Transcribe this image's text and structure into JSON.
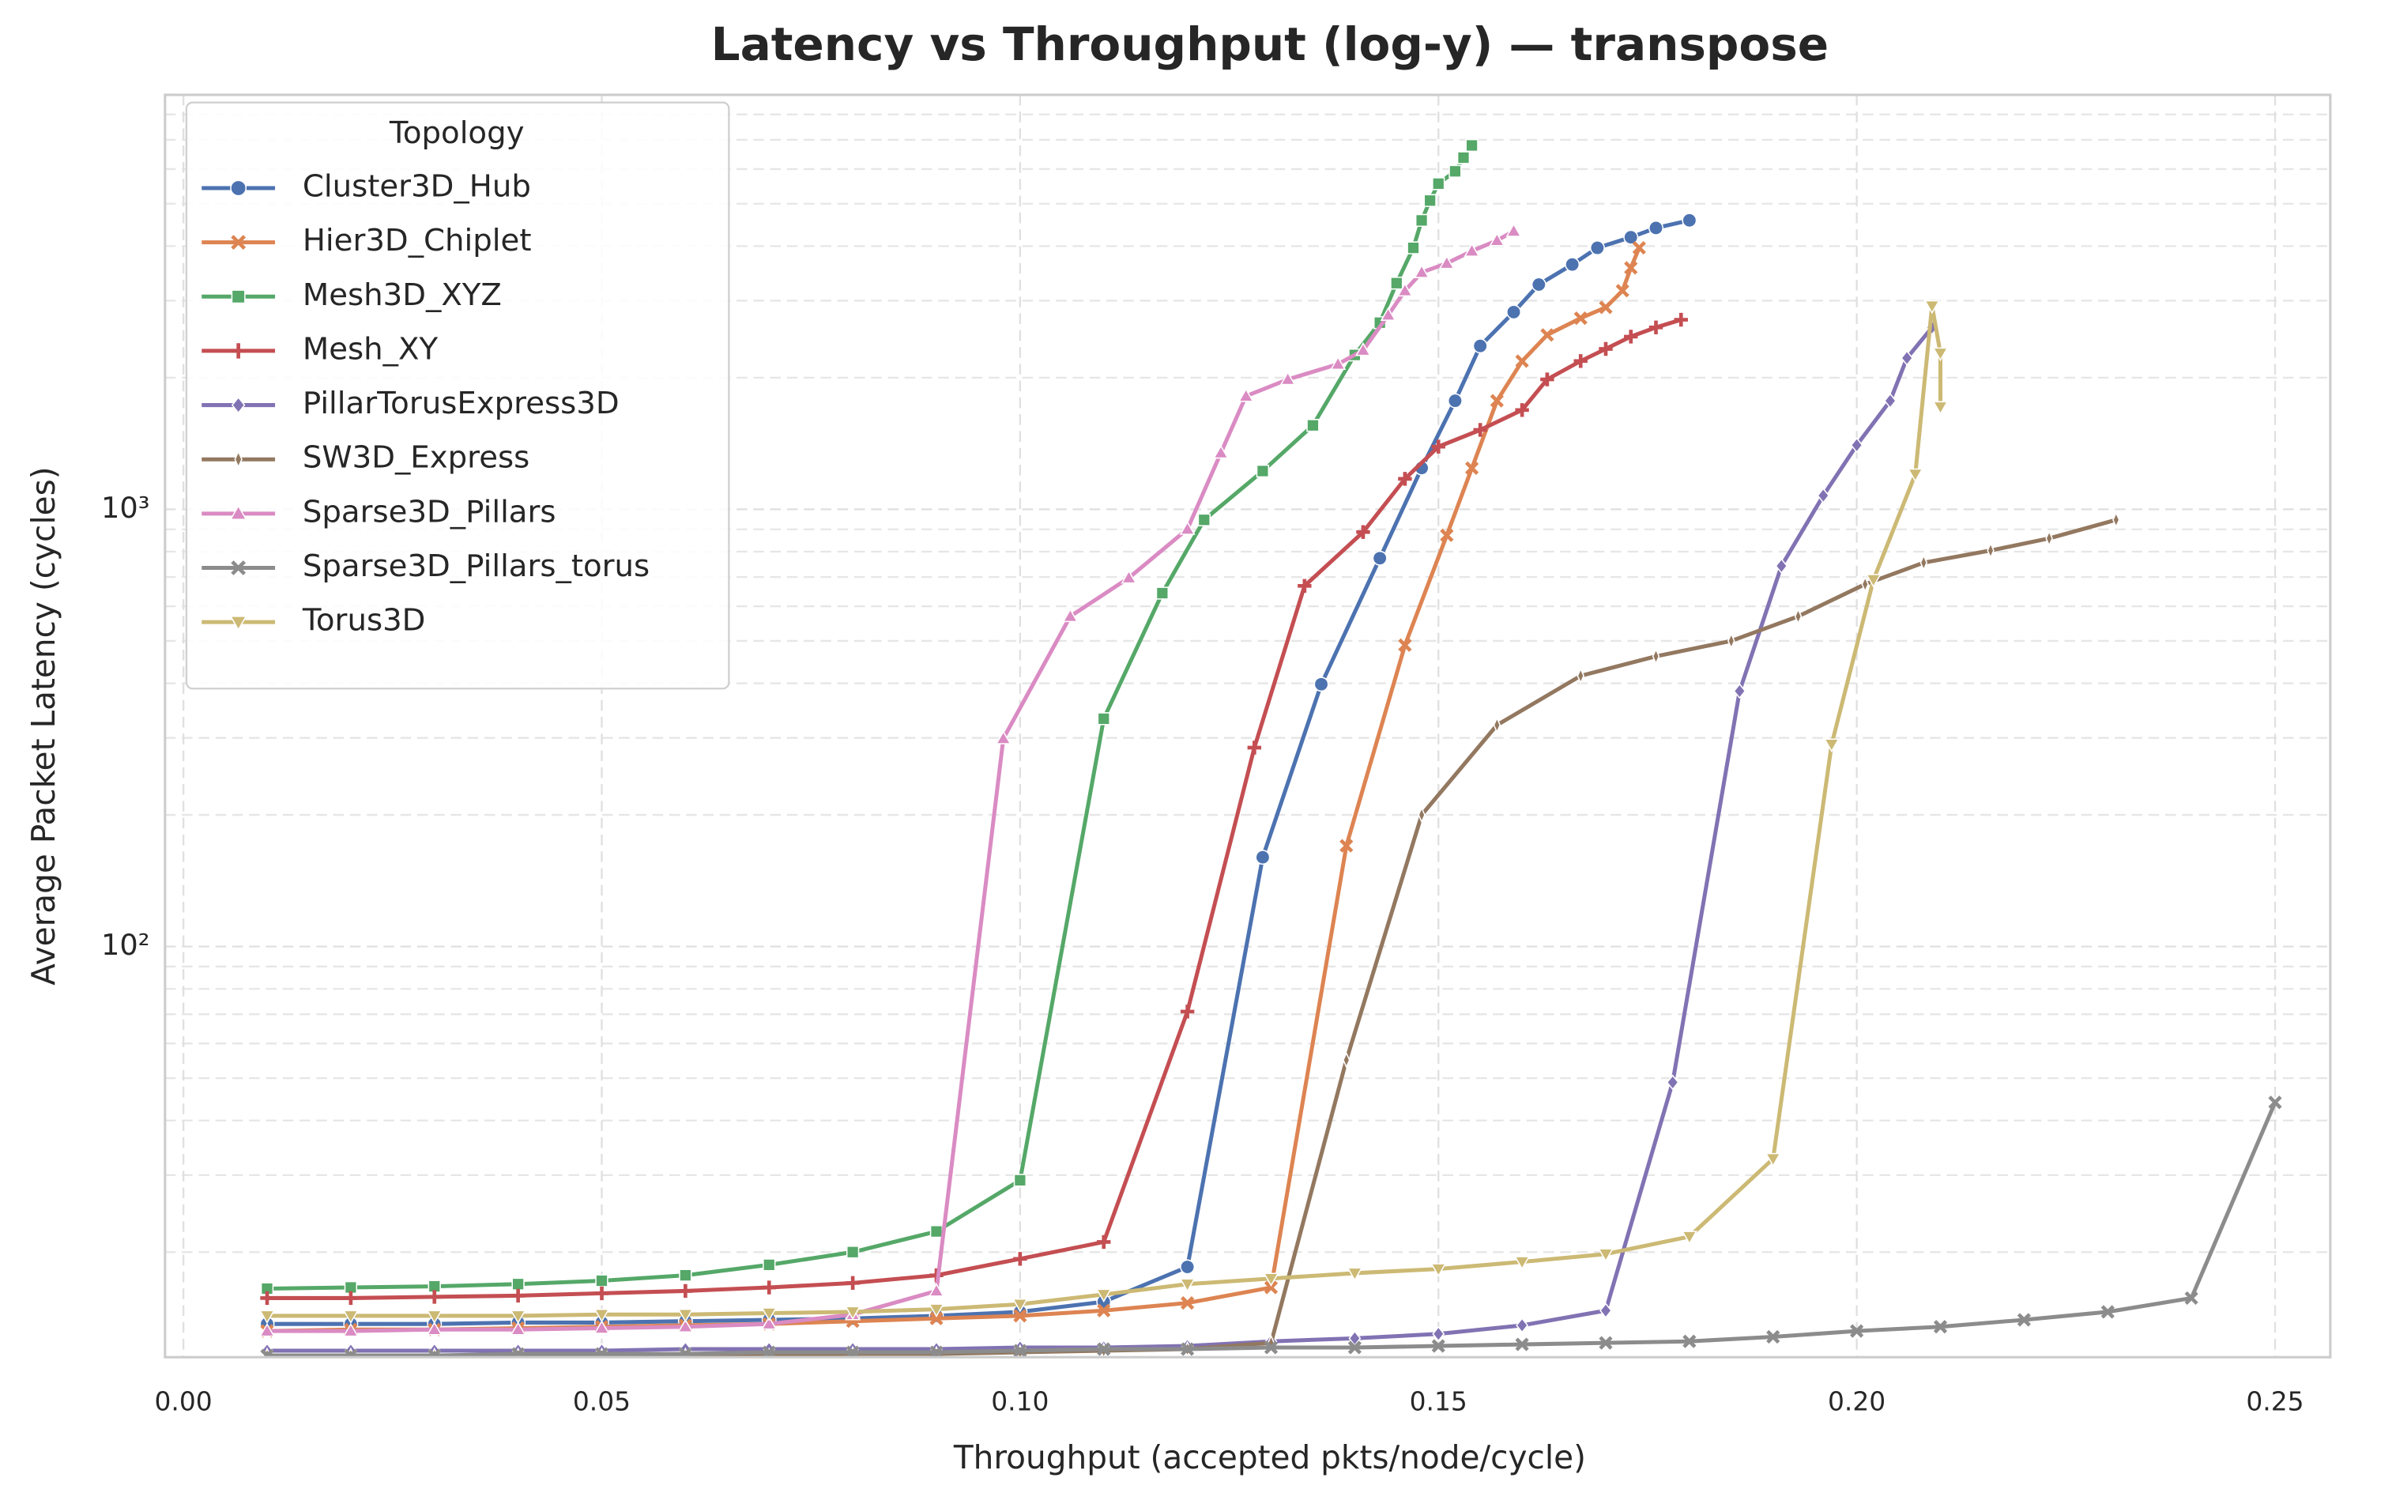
{
  "chart_data": {
    "type": "line",
    "title": "Latency vs Throughput (log-y) — transpose",
    "xlabel": "Throughput (accepted pkts/node/cycle)",
    "ylabel": "Average Packet Latency (cycles)",
    "xlim": [
      -0.0022,
      0.2566
    ],
    "ylim": [
      11.5,
      8870
    ],
    "xticks": [
      {
        "value": 0,
        "label": "0.00"
      },
      {
        "value": 0.05,
        "label": "0.05"
      },
      {
        "value": 0.1,
        "label": "0.10"
      },
      {
        "value": 0.15,
        "label": "0.15"
      },
      {
        "value": 0.2,
        "label": "0.20"
      },
      {
        "value": 0.25,
        "label": "0.25"
      }
    ],
    "yticks": [
      {
        "value": 100,
        "label": "10²"
      },
      {
        "value": 1000,
        "label": "10³"
      }
    ],
    "yminorticks": [
      20,
      30,
      40,
      50,
      60,
      70,
      80,
      90,
      200,
      300,
      400,
      500,
      600,
      700,
      800,
      900,
      2000,
      3000,
      4000,
      5000,
      6000,
      7000,
      8000
    ],
    "ylog": true,
    "grid": true,
    "legend": "upper left",
    "legend_title": "Topology",
    "series": [
      {
        "name": "Cluster3D_Hub",
        "color": "#4c72b0",
        "marker": "circle",
        "x": [
          0.01,
          0.02,
          0.03,
          0.04,
          0.05,
          0.06,
          0.07,
          0.08,
          0.09,
          0.1,
          0.11,
          0.12,
          0.129,
          0.136,
          0.143,
          0.148,
          0.152,
          0.155,
          0.159,
          0.162,
          0.166,
          0.169,
          0.173,
          0.176,
          0.18
        ],
        "values": [
          13.7,
          13.7,
          13.7,
          13.8,
          13.8,
          13.9,
          14.0,
          14.1,
          14.3,
          14.6,
          15.4,
          18.5,
          160,
          398,
          773,
          1243,
          1771,
          2364,
          2825,
          3266,
          3630,
          3963,
          4190,
          4400,
          4580
        ]
      },
      {
        "name": "Hier3D_Chiplet",
        "color": "#dd8452",
        "marker": "x",
        "x": [
          0.01,
          0.02,
          0.03,
          0.04,
          0.05,
          0.06,
          0.07,
          0.08,
          0.09,
          0.1,
          0.11,
          0.12,
          0.13,
          0.139,
          0.146,
          0.151,
          0.154,
          0.157,
          0.16,
          0.163,
          0.167,
          0.17,
          0.172,
          0.173,
          0.174
        ],
        "values": [
          13.2,
          13.3,
          13.3,
          13.4,
          13.5,
          13.6,
          13.7,
          13.9,
          14.1,
          14.3,
          14.7,
          15.3,
          16.6,
          170,
          489,
          872,
          1242,
          1771,
          2182,
          2505,
          2736,
          2896,
          3162,
          3566,
          3963
        ]
      },
      {
        "name": "Mesh3D_XYZ",
        "color": "#55a868",
        "marker": "square",
        "x": [
          0.01,
          0.02,
          0.03,
          0.04,
          0.05,
          0.06,
          0.07,
          0.08,
          0.09,
          0.1,
          0.11,
          0.117,
          0.122,
          0.129,
          0.135,
          0.14,
          0.143,
          0.145,
          0.147,
          0.148,
          0.149,
          0.15,
          0.152,
          0.153,
          0.154
        ],
        "values": [
          16.5,
          16.6,
          16.7,
          16.9,
          17.2,
          17.7,
          18.7,
          20.0,
          22.3,
          29.2,
          332,
          643,
          946,
          1223,
          1556,
          2254,
          2672,
          3290,
          3963,
          4580,
          5085,
          5556,
          5929,
          6371,
          6796
        ]
      },
      {
        "name": "Mesh_XY",
        "color": "#c44e52",
        "marker": "plus",
        "x": [
          0.01,
          0.02,
          0.03,
          0.04,
          0.05,
          0.06,
          0.07,
          0.08,
          0.09,
          0.1,
          0.11,
          0.12,
          0.128,
          0.134,
          0.141,
          0.146,
          0.15,
          0.155,
          0.16,
          0.163,
          0.167,
          0.17,
          0.173,
          0.176,
          0.179
        ],
        "values": [
          15.7,
          15.7,
          15.8,
          15.9,
          16.1,
          16.3,
          16.6,
          17.0,
          17.7,
          19.3,
          21.1,
          71,
          285,
          668,
          887,
          1174,
          1391,
          1519,
          1687,
          1982,
          2183,
          2327,
          2483,
          2606,
          2714
        ]
      },
      {
        "name": "PillarTorusExpress3D",
        "color": "#8172b3",
        "marker": "diamond",
        "x": [
          0.01,
          0.02,
          0.03,
          0.04,
          0.05,
          0.06,
          0.07,
          0.08,
          0.09,
          0.1,
          0.11,
          0.12,
          0.13,
          0.14,
          0.15,
          0.16,
          0.17,
          0.178,
          0.186,
          0.191,
          0.196,
          0.2,
          0.204,
          0.206,
          0.209
        ],
        "values": [
          11.9,
          11.9,
          11.9,
          11.9,
          11.9,
          12.0,
          12.0,
          12.0,
          12.0,
          12.1,
          12.1,
          12.2,
          12.5,
          12.7,
          13.0,
          13.6,
          14.7,
          48.9,
          384,
          742,
          1075,
          1402,
          1771,
          2218,
          2606
        ]
      },
      {
        "name": "SW3D_Express",
        "color": "#937860",
        "marker": "thin",
        "x": [
          0.01,
          0.02,
          0.03,
          0.04,
          0.05,
          0.06,
          0.07,
          0.08,
          0.09,
          0.1,
          0.11,
          0.12,
          0.13,
          0.139,
          0.148,
          0.157,
          0.167,
          0.176,
          0.185,
          0.193,
          0.201,
          0.208,
          0.216,
          0.223,
          0.231
        ],
        "values": [
          11.6,
          11.6,
          11.6,
          11.6,
          11.6,
          11.6,
          11.6,
          11.7,
          11.7,
          11.8,
          11.9,
          12.0,
          12.4,
          55,
          200,
          321,
          416,
          461,
          500,
          569,
          674,
          755,
          805,
          858,
          946
        ]
      },
      {
        "name": "Sparse3D_Pillars",
        "color": "#da8bc3",
        "marker": "triangle",
        "x": [
          0.01,
          0.02,
          0.03,
          0.04,
          0.05,
          0.06,
          0.07,
          0.08,
          0.09,
          0.098,
          0.106,
          0.113,
          0.12,
          0.124,
          0.127,
          0.132,
          0.138,
          0.141,
          0.144,
          0.146,
          0.148,
          0.151,
          0.154,
          0.157,
          0.159
        ],
        "values": [
          13.2,
          13.2,
          13.3,
          13.3,
          13.4,
          13.5,
          13.7,
          14.4,
          16.3,
          299,
          569,
          697,
          901,
          1346,
          1815,
          1982,
          2148,
          2311,
          2781,
          3162,
          3482,
          3654,
          3897,
          4119,
          4327
        ]
      },
      {
        "name": "Sparse3D_Pillars_torus",
        "color": "#8c8c8c",
        "marker": "x",
        "x": [
          0.01,
          0.02,
          0.03,
          0.04,
          0.05,
          0.06,
          0.07,
          0.08,
          0.09,
          0.1,
          0.11,
          0.12,
          0.13,
          0.14,
          0.15,
          0.16,
          0.17,
          0.18,
          0.19,
          0.2,
          0.21,
          0.22,
          0.23,
          0.24,
          0.25
        ],
        "values": [
          11.6,
          11.6,
          11.6,
          11.7,
          11.7,
          11.7,
          11.8,
          11.8,
          11.8,
          11.9,
          12.0,
          12.0,
          12.1,
          12.1,
          12.2,
          12.3,
          12.4,
          12.5,
          12.8,
          13.2,
          13.5,
          14.0,
          14.6,
          15.7,
          44
        ]
      },
      {
        "name": "Torus3D",
        "color": "#ccb974",
        "marker": "tri-down",
        "x": [
          0.01,
          0.02,
          0.03,
          0.04,
          0.05,
          0.06,
          0.07,
          0.08,
          0.09,
          0.1,
          0.11,
          0.12,
          0.13,
          0.14,
          0.15,
          0.16,
          0.17,
          0.18,
          0.19,
          0.197,
          0.202,
          0.207,
          0.209,
          0.21,
          0.21
        ],
        "values": [
          14.3,
          14.3,
          14.3,
          14.3,
          14.4,
          14.4,
          14.5,
          14.6,
          14.8,
          15.2,
          16.0,
          16.9,
          17.4,
          17.9,
          18.3,
          19.0,
          19.8,
          21.7,
          32.7,
          290,
          690,
          1203,
          2918,
          2275,
          1715
        ]
      }
    ]
  }
}
